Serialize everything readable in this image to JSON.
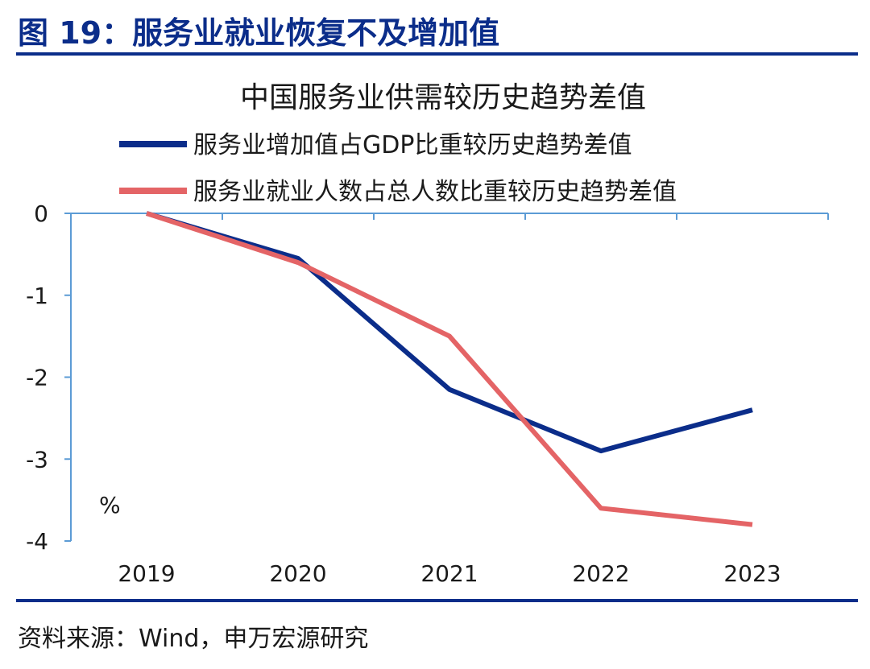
{
  "figure": {
    "title": "图 19：服务业就业恢复不及增加值",
    "source": "资料来源：Wind，申万宏源研究"
  },
  "chart_data": {
    "type": "line",
    "title": "中国服务业供需较历史趋势差值",
    "unit": "%",
    "x": [
      "2019",
      "2020",
      "2021",
      "2022",
      "2023"
    ],
    "ylim": [
      -4,
      0
    ],
    "yticks": [
      0,
      -1,
      -2,
      -3,
      -4
    ],
    "grid": false,
    "legend_position": "top",
    "series": [
      {
        "name": "服务业增加值占GDP比重较历史趋势差值",
        "color": "#0b2d8a",
        "values": [
          0,
          -0.55,
          -2.15,
          -2.9,
          -2.4
        ]
      },
      {
        "name": "服务业就业人数占总人数比重较历史趋势差值",
        "color": "#e46466",
        "values": [
          0,
          -0.6,
          -1.5,
          -3.6,
          -3.8
        ]
      }
    ]
  }
}
